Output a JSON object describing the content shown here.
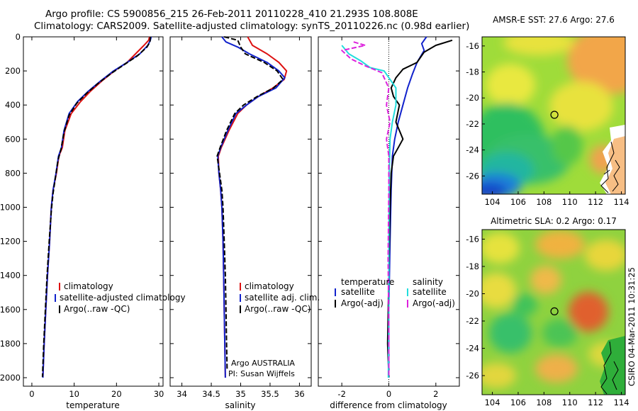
{
  "header": {
    "title_line1": "Argo profile: CS 5900856_215 26-Feb-2011 20110228_410 21.293S 108.808E",
    "title_line2": "Climatology: CARS2009. Satellite-adjusted climatology: synTS_20110226.nc (0.98d earlier)"
  },
  "footer": {
    "stamp": "CSIRO 04-Mar-2011 10:31:25"
  },
  "colors": {
    "climatology": "#dd1111",
    "satellite": "#1122cc",
    "argo": "#000000",
    "salinity_satellite": "#22dddd",
    "salinity_argo": "#dd22dd"
  },
  "chart_data": [
    {
      "type": "line",
      "id": "temperature",
      "xlabel": "temperature",
      "ylabel": "",
      "xlim": [
        -2,
        31
      ],
      "ylim": [
        2050,
        0
      ],
      "xticks": [
        0,
        10,
        20,
        30
      ],
      "yticks": [
        0,
        200,
        400,
        600,
        800,
        1000,
        1200,
        1400,
        1600,
        1800,
        2000
      ],
      "legend": [
        "climatology",
        "satellite-adjusted climatology",
        "Argo(..raw -QC)"
      ],
      "legend_position": "lower-center",
      "series": [
        {
          "name": "climatology",
          "color": "#dd1111",
          "dash": false,
          "points": [
            [
              27.8,
              0
            ],
            [
              27.6,
              20
            ],
            [
              26.5,
              50
            ],
            [
              24.5,
              100
            ],
            [
              22.5,
              150
            ],
            [
              19.5,
              200
            ],
            [
              16.5,
              260
            ],
            [
              13.8,
              320
            ],
            [
              11.5,
              380
            ],
            [
              9.3,
              450
            ],
            [
              7.8,
              550
            ],
            [
              7.2,
              650
            ],
            [
              6.4,
              700
            ],
            [
              5.8,
              800
            ],
            [
              5.0,
              900
            ],
            [
              4.6,
              1000
            ],
            [
              4.2,
              1200
            ],
            [
              3.7,
              1400
            ],
            [
              3.3,
              1600
            ],
            [
              2.9,
              1800
            ],
            [
              2.6,
              2000
            ]
          ]
        },
        {
          "name": "satellite-adjusted climatology",
          "color": "#1122cc",
          "dash": false,
          "points": [
            [
              28.2,
              0
            ],
            [
              28.0,
              20
            ],
            [
              27.4,
              50
            ],
            [
              25.5,
              100
            ],
            [
              22.5,
              150
            ],
            [
              19.3,
              200
            ],
            [
              16.2,
              260
            ],
            [
              13.3,
              320
            ],
            [
              10.8,
              380
            ],
            [
              8.8,
              450
            ],
            [
              7.6,
              550
            ],
            [
              7.0,
              650
            ],
            [
              6.3,
              700
            ],
            [
              5.7,
              800
            ],
            [
              5.0,
              900
            ],
            [
              4.6,
              1000
            ],
            [
              4.2,
              1200
            ],
            [
              3.7,
              1400
            ],
            [
              3.3,
              1600
            ],
            [
              2.9,
              1800
            ],
            [
              2.6,
              2000
            ]
          ]
        },
        {
          "name": "Argo(..raw -QC)",
          "color": "#000000",
          "dash": true,
          "points": [
            [
              28.0,
              0
            ],
            [
              27.9,
              30
            ],
            [
              27.2,
              60
            ],
            [
              25.0,
              110
            ],
            [
              22.0,
              160
            ],
            [
              19.0,
              210
            ],
            [
              15.8,
              270
            ],
            [
              13.0,
              330
            ],
            [
              10.6,
              390
            ],
            [
              8.8,
              460
            ],
            [
              7.6,
              560
            ],
            [
              6.9,
              660
            ],
            [
              6.2,
              720
            ],
            [
              5.6,
              820
            ],
            [
              5.0,
              920
            ],
            [
              4.6,
              1020
            ],
            [
              4.1,
              1200
            ],
            [
              3.6,
              1400
            ],
            [
              3.2,
              1600
            ],
            [
              2.8,
              1800
            ],
            [
              2.5,
              1995
            ]
          ]
        }
      ]
    },
    {
      "type": "line",
      "id": "salinity",
      "xlabel": "salinity",
      "ylabel": "",
      "xlim": [
        33.8,
        36.2
      ],
      "ylim": [
        2050,
        0
      ],
      "xticks": [
        34,
        34.5,
        35,
        35.5,
        36
      ],
      "yticks": [
        0,
        200,
        400,
        600,
        800,
        1000,
        1200,
        1400,
        1600,
        1800,
        2000
      ],
      "legend": [
        "climatology",
        "satellite adj. clim.",
        "Argo(..raw -QC)"
      ],
      "legend_position": "lower-center",
      "annotations": [
        "Argo AUSTRALIA",
        "PI: Susan Wijffels"
      ],
      "series": [
        {
          "name": "climatology",
          "color": "#dd1111",
          "dash": false,
          "points": [
            [
              35.12,
              0
            ],
            [
              35.2,
              50
            ],
            [
              35.45,
              100
            ],
            [
              35.65,
              150
            ],
            [
              35.78,
              200
            ],
            [
              35.74,
              250
            ],
            [
              35.55,
              300
            ],
            [
              35.3,
              350
            ],
            [
              35.1,
              400
            ],
            [
              34.95,
              450
            ],
            [
              34.8,
              550
            ],
            [
              34.67,
              650
            ],
            [
              34.62,
              700
            ],
            [
              34.63,
              800
            ],
            [
              34.66,
              900
            ],
            [
              34.68,
              1000
            ],
            [
              34.7,
              1200
            ],
            [
              34.71,
              1400
            ],
            [
              34.72,
              1600
            ],
            [
              34.73,
              1800
            ],
            [
              34.74,
              2000
            ]
          ]
        },
        {
          "name": "satellite adj. clim.",
          "color": "#1122cc",
          "dash": false,
          "points": [
            [
              34.68,
              0
            ],
            [
              34.75,
              30
            ],
            [
              34.95,
              60
            ],
            [
              35.15,
              100
            ],
            [
              35.45,
              150
            ],
            [
              35.65,
              200
            ],
            [
              35.75,
              240
            ],
            [
              35.6,
              300
            ],
            [
              35.3,
              350
            ],
            [
              35.1,
              400
            ],
            [
              34.92,
              450
            ],
            [
              34.78,
              550
            ],
            [
              34.66,
              650
            ],
            [
              34.61,
              700
            ],
            [
              34.63,
              800
            ],
            [
              34.66,
              900
            ],
            [
              34.68,
              1000
            ],
            [
              34.7,
              1200
            ],
            [
              34.71,
              1400
            ],
            [
              34.72,
              1600
            ],
            [
              34.73,
              1800
            ],
            [
              34.74,
              2000
            ]
          ]
        },
        {
          "name": "Argo(..raw -QC)",
          "color": "#000000",
          "dash": true,
          "points": [
            [
              34.72,
              0
            ],
            [
              34.95,
              20
            ],
            [
              35.0,
              60
            ],
            [
              35.08,
              100
            ],
            [
              35.4,
              150
            ],
            [
              35.62,
              200
            ],
            [
              35.72,
              250
            ],
            [
              35.56,
              300
            ],
            [
              35.28,
              350
            ],
            [
              35.05,
              400
            ],
            [
              34.9,
              450
            ],
            [
              34.76,
              550
            ],
            [
              34.65,
              650
            ],
            [
              34.6,
              700
            ],
            [
              34.64,
              800
            ],
            [
              34.68,
              900
            ],
            [
              34.7,
              1000
            ],
            [
              34.72,
              1200
            ],
            [
              34.74,
              1400
            ],
            [
              34.75,
              1600
            ],
            [
              34.76,
              1800
            ],
            [
              34.77,
              1950
            ]
          ]
        }
      ]
    },
    {
      "type": "line",
      "id": "difference",
      "xlabel": "difference from climatology",
      "ylabel": "",
      "xlim": [
        -3,
        3
      ],
      "ylim": [
        2050,
        0
      ],
      "xticks": [
        -2,
        0,
        2
      ],
      "yticks": [
        0,
        200,
        400,
        600,
        800,
        1000,
        1200,
        1400,
        1600,
        1800,
        2000
      ],
      "legend_temperature_heading": "temperature",
      "legend_salinity_heading": "salinity",
      "legend": [
        "satellite",
        "Argo(-adj)",
        "satellite",
        "Argo(-adj)"
      ],
      "legend_position": "lower-center",
      "series": [
        {
          "name": "satellite",
          "color": "#1122cc",
          "dash": false,
          "points": [
            [
              1.6,
              0
            ],
            [
              1.4,
              40
            ],
            [
              1.5,
              80
            ],
            [
              1.2,
              150
            ],
            [
              1.0,
              220
            ],
            [
              0.8,
              300
            ],
            [
              0.6,
              400
            ],
            [
              0.4,
              500
            ],
            [
              0.25,
              600
            ],
            [
              0.15,
              700
            ],
            [
              0.1,
              900
            ],
            [
              0.05,
              1200
            ],
            [
              0.0,
              1600
            ],
            [
              0.0,
              2000
            ]
          ]
        },
        {
          "name": "Argo(-adj)",
          "color": "#000000",
          "dash": false,
          "points": [
            [
              2.7,
              20
            ],
            [
              2.0,
              50
            ],
            [
              1.5,
              90
            ],
            [
              1.2,
              150
            ],
            [
              0.6,
              190
            ],
            [
              0.3,
              240
            ],
            [
              0.1,
              300
            ],
            [
              0.2,
              350
            ],
            [
              0.45,
              400
            ],
            [
              0.3,
              500
            ],
            [
              0.6,
              600
            ],
            [
              0.4,
              650
            ],
            [
              0.2,
              700
            ],
            [
              0.1,
              800
            ],
            [
              0.05,
              1000
            ],
            [
              0.0,
              1400
            ],
            [
              -0.05,
              1800
            ],
            [
              0.0,
              1995
            ]
          ]
        },
        {
          "name": "satellite",
          "color": "#22dddd",
          "dash": false,
          "points": [
            [
              -2.0,
              50
            ],
            [
              -1.7,
              100
            ],
            [
              -1.2,
              140
            ],
            [
              -0.8,
              180
            ],
            [
              -0.2,
              200
            ],
            [
              0.3,
              300
            ],
            [
              0.3,
              400
            ],
            [
              0.15,
              500
            ],
            [
              0.05,
              600
            ],
            [
              0.02,
              800
            ],
            [
              0.0,
              1200
            ],
            [
              0.0,
              1600
            ],
            [
              -0.02,
              2000
            ]
          ]
        },
        {
          "name": "Argo(-adj)",
          "color": "#dd22dd",
          "dash": true,
          "points": [
            [
              -1.5,
              30
            ],
            [
              -1.0,
              50
            ],
            [
              -2.0,
              80
            ],
            [
              -1.6,
              130
            ],
            [
              -1.0,
              170
            ],
            [
              -0.3,
              210
            ],
            [
              0.0,
              300
            ],
            [
              -0.1,
              400
            ],
            [
              0.05,
              500
            ],
            [
              -0.1,
              600
            ],
            [
              0.0,
              700
            ],
            [
              0.0,
              900
            ],
            [
              -0.03,
              1300
            ],
            [
              0.0,
              1700
            ],
            [
              0.0,
              1995
            ]
          ]
        }
      ]
    },
    {
      "type": "heatmap",
      "id": "sst-map",
      "title": "AMSR-E SST: 27.6 Argo: 27.6",
      "xlim": [
        103.2,
        114.3
      ],
      "ylim": [
        -27.4,
        -15.3
      ],
      "xticks": [
        104,
        106,
        108,
        110,
        112,
        114
      ],
      "yticks": [
        -16,
        -18,
        -20,
        -22,
        -24,
        -26
      ],
      "profile_location": [
        108.808,
        -21.293
      ]
    },
    {
      "type": "heatmap",
      "id": "sla-map",
      "title": "Altimetric SLA: 0.2 Argo: 0.17",
      "xlim": [
        103.2,
        114.3
      ],
      "ylim": [
        -27.4,
        -15.3
      ],
      "xticks": [
        104,
        106,
        108,
        110,
        112,
        114
      ],
      "yticks": [
        -16,
        -18,
        -20,
        -22,
        -24,
        -26
      ],
      "profile_location": [
        108.808,
        -21.293
      ]
    }
  ]
}
